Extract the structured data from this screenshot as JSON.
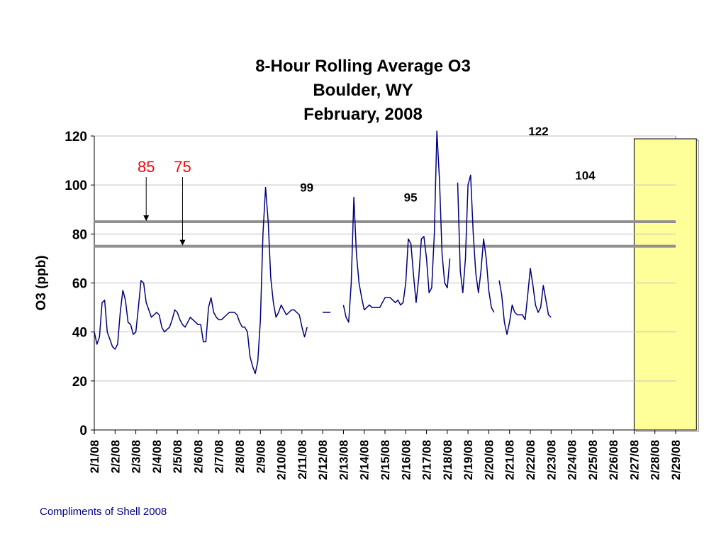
{
  "chart_data": {
    "type": "line",
    "title": [
      "8-Hour Rolling Average O3",
      "Boulder, WY",
      "February, 2008"
    ],
    "ylabel": "O3 (ppb)",
    "xlabel": "",
    "ylim": [
      0,
      120
    ],
    "yticks": [
      0,
      20,
      40,
      60,
      80,
      100,
      120
    ],
    "xlim": [
      "2/1/08",
      "2/29/08"
    ],
    "x_tick_labels": [
      "2/1/08",
      "2/2/08",
      "2/3/08",
      "2/4/08",
      "2/5/08",
      "2/6/08",
      "2/7/08",
      "2/8/08",
      "2/9/08",
      "2/10/08",
      "2/11/08",
      "2/12/08",
      "2/13/08",
      "2/14/08",
      "2/15/08",
      "2/16/08",
      "2/17/08",
      "2/18/08",
      "2/19/08",
      "2/20/08",
      "2/21/08",
      "2/22/08",
      "2/23/08",
      "2/24/08",
      "2/25/08",
      "2/26/08",
      "2/27/08",
      "2/28/08",
      "2/29/08"
    ],
    "grid": {
      "horizontal": true,
      "vertical": false
    },
    "line_color": "#000080",
    "reference_lines": [
      {
        "value": 85,
        "label": "85",
        "label_color": "#ff0000",
        "arrow_at": "2/3/08 12:00"
      },
      {
        "value": 75,
        "label": "75",
        "label_color": "#ff0000",
        "arrow_at": "2/5/08 06:00"
      }
    ],
    "highlight_range": {
      "from": "2/27/08",
      "to": "2/29/08 24:00",
      "color": "#ffff99"
    },
    "annotations": [
      {
        "text": "99",
        "x": "2/10/08 12:00",
        "y": 99
      },
      {
        "text": "95",
        "x": "2/15/08 12:00",
        "y": 95
      },
      {
        "text": "122",
        "x": "2/21/08 12:00",
        "y": 122
      },
      {
        "text": "104",
        "x": "2/23/08 18:00",
        "y": 104
      }
    ],
    "series": [
      {
        "segments": [
          [
            [
              "2/1/08 00:00",
              40
            ],
            [
              "2/1/08 03:00",
              35
            ],
            [
              "2/1/08 06:00",
              38
            ],
            [
              "2/1/08 09:00",
              52
            ],
            [
              "2/1/08 12:00",
              53
            ],
            [
              "2/1/08 15:00",
              40
            ],
            [
              "2/1/08 18:00",
              37
            ],
            [
              "2/1/08 21:00",
              34
            ],
            [
              "2/2/08 00:00",
              33
            ],
            [
              "2/2/08 03:00",
              35
            ],
            [
              "2/2/08 06:00",
              48
            ],
            [
              "2/2/08 09:00",
              57
            ],
            [
              "2/2/08 12:00",
              53
            ],
            [
              "2/2/08 15:00",
              44
            ],
            [
              "2/2/08 18:00",
              43
            ],
            [
              "2/2/08 21:00",
              39
            ],
            [
              "2/3/08 00:00",
              40
            ],
            [
              "2/3/08 03:00",
              50
            ],
            [
              "2/3/08 06:00",
              61
            ],
            [
              "2/3/08 09:00",
              60
            ],
            [
              "2/3/08 12:00",
              52
            ],
            [
              "2/3/08 15:00",
              49
            ],
            [
              "2/3/08 18:00",
              46
            ],
            [
              "2/3/08 21:00",
              47
            ],
            [
              "2/4/08 00:00",
              48
            ],
            [
              "2/4/08 03:00",
              47
            ],
            [
              "2/4/08 06:00",
              42
            ],
            [
              "2/4/08 09:00",
              40
            ],
            [
              "2/4/08 12:00",
              41
            ],
            [
              "2/4/08 15:00",
              42
            ],
            [
              "2/4/08 18:00",
              45
            ],
            [
              "2/4/08 21:00",
              49
            ],
            [
              "2/5/08 00:00",
              48
            ],
            [
              "2/5/08 03:00",
              45
            ],
            [
              "2/5/08 06:00",
              43
            ],
            [
              "2/5/08 09:00",
              42
            ],
            [
              "2/5/08 12:00",
              44
            ],
            [
              "2/5/08 15:00",
              46
            ],
            [
              "2/5/08 18:00",
              45
            ],
            [
              "2/5/08 21:00",
              44
            ],
            [
              "2/6/08 00:00",
              43
            ],
            [
              "2/6/08 03:00",
              43
            ],
            [
              "2/6/08 06:00",
              36
            ],
            [
              "2/6/08 09:00",
              36
            ],
            [
              "2/6/08 12:00",
              50
            ],
            [
              "2/6/08 15:00",
              54
            ],
            [
              "2/6/08 18:00",
              48
            ],
            [
              "2/6/08 21:00",
              46
            ],
            [
              "2/7/08 00:00",
              45
            ],
            [
              "2/7/08 03:00",
              45
            ],
            [
              "2/7/08 06:00",
              46
            ],
            [
              "2/7/08 09:00",
              47
            ],
            [
              "2/7/08 12:00",
              48
            ],
            [
              "2/7/08 15:00",
              48
            ],
            [
              "2/7/08 18:00",
              48
            ],
            [
              "2/7/08 21:00",
              47
            ],
            [
              "2/8/08 00:00",
              44
            ],
            [
              "2/8/08 03:00",
              42
            ],
            [
              "2/8/08 06:00",
              42
            ],
            [
              "2/8/08 09:00",
              40
            ],
            [
              "2/8/08 12:00",
              30
            ],
            [
              "2/8/08 15:00",
              26
            ],
            [
              "2/8/08 18:00",
              23
            ],
            [
              "2/8/08 21:00",
              28
            ],
            [
              "2/9/08 00:00",
              45
            ],
            [
              "2/9/08 03:00",
              80
            ],
            [
              "2/9/08 06:00",
              99
            ],
            [
              "2/9/08 09:00",
              85
            ],
            [
              "2/9/08 12:00",
              62
            ],
            [
              "2/9/08 15:00",
              52
            ],
            [
              "2/9/08 18:00",
              46
            ],
            [
              "2/9/08 21:00",
              48
            ],
            [
              "2/10/08 00:00",
              51
            ],
            [
              "2/10/08 03:00",
              49
            ],
            [
              "2/10/08 06:00",
              47
            ],
            [
              "2/10/08 09:00",
              48
            ],
            [
              "2/10/08 12:00",
              49
            ],
            [
              "2/10/08 15:00",
              49
            ],
            [
              "2/10/08 18:00",
              48
            ],
            [
              "2/10/08 21:00",
              47
            ],
            [
              "2/11/08 00:00",
              42
            ],
            [
              "2/11/08 03:00",
              38
            ],
            [
              "2/11/08 06:00",
              42
            ]
          ],
          [
            [
              "2/12/08 00:00",
              48
            ],
            [
              "2/12/08 09:00",
              48
            ]
          ],
          [
            [
              "2/13/08 00:00",
              51
            ],
            [
              "2/13/08 03:00",
              46
            ],
            [
              "2/13/08 06:00",
              44
            ],
            [
              "2/13/08 09:00",
              60
            ],
            [
              "2/13/08 12:00",
              95
            ],
            [
              "2/13/08 15:00",
              72
            ],
            [
              "2/13/08 18:00",
              60
            ],
            [
              "2/13/08 21:00",
              54
            ],
            [
              "2/14/08 00:00",
              49
            ],
            [
              "2/14/08 03:00",
              50
            ],
            [
              "2/14/08 06:00",
              51
            ],
            [
              "2/14/08 09:00",
              50
            ],
            [
              "2/14/08 12:00",
              50
            ],
            [
              "2/14/08 15:00",
              50
            ],
            [
              "2/14/08 18:00",
              50
            ],
            [
              "2/14/08 21:00",
              52
            ],
            [
              "2/15/08 00:00",
              54
            ],
            [
              "2/15/08 03:00",
              54
            ],
            [
              "2/15/08 06:00",
              54
            ],
            [
              "2/15/08 09:00",
              53
            ],
            [
              "2/15/08 12:00",
              52
            ],
            [
              "2/15/08 15:00",
              53
            ],
            [
              "2/15/08 18:00",
              51
            ],
            [
              "2/15/08 21:00",
              52
            ],
            [
              "2/16/08 00:00",
              60
            ],
            [
              "2/16/08 03:00",
              78
            ],
            [
              "2/16/08 06:00",
              76
            ],
            [
              "2/16/08 09:00",
              63
            ],
            [
              "2/16/08 12:00",
              52
            ],
            [
              "2/16/08 15:00",
              62
            ],
            [
              "2/16/08 18:00",
              78
            ],
            [
              "2/16/08 21:00",
              79
            ],
            [
              "2/17/08 00:00",
              70
            ],
            [
              "2/17/08 03:00",
              56
            ],
            [
              "2/17/08 06:00",
              58
            ],
            [
              "2/17/08 09:00",
              80
            ],
            [
              "2/17/08 12:00",
              122
            ],
            [
              "2/17/08 15:00",
              102
            ],
            [
              "2/17/08 18:00",
              72
            ],
            [
              "2/17/08 21:00",
              60
            ],
            [
              "2/18/08 00:00",
              58
            ],
            [
              "2/18/08 03:00",
              70
            ]
          ],
          [
            [
              "2/18/08 12:00",
              101
            ],
            [
              "2/18/08 15:00",
              65
            ],
            [
              "2/18/08 18:00",
              56
            ],
            [
              "2/18/08 21:00",
              70
            ],
            [
              "2/19/08 00:00",
              100
            ],
            [
              "2/19/08 03:00",
              104
            ],
            [
              "2/19/08 06:00",
              80
            ],
            [
              "2/19/08 09:00",
              64
            ],
            [
              "2/19/08 12:00",
              56
            ],
            [
              "2/19/08 15:00",
              65
            ],
            [
              "2/19/08 18:00",
              78
            ],
            [
              "2/19/08 21:00",
              70
            ],
            [
              "2/20/08 00:00",
              57
            ],
            [
              "2/20/08 03:00",
              50
            ],
            [
              "2/20/08 06:00",
              48
            ]
          ],
          [
            [
              "2/20/08 12:00",
              61
            ],
            [
              "2/20/08 15:00",
              55
            ],
            [
              "2/20/08 18:00",
              44
            ],
            [
              "2/20/08 21:00",
              39
            ],
            [
              "2/21/08 00:00",
              44
            ],
            [
              "2/21/08 03:00",
              51
            ],
            [
              "2/21/08 06:00",
              48
            ],
            [
              "2/21/08 09:00",
              47
            ],
            [
              "2/21/08 12:00",
              47
            ],
            [
              "2/21/08 15:00",
              47
            ],
            [
              "2/21/08 18:00",
              45
            ],
            [
              "2/21/08 21:00",
              55
            ],
            [
              "2/22/08 00:00",
              66
            ],
            [
              "2/22/08 03:00",
              59
            ],
            [
              "2/22/08 06:00",
              51
            ],
            [
              "2/22/08 09:00",
              48
            ],
            [
              "2/22/08 12:00",
              50
            ],
            [
              "2/22/08 15:00",
              59
            ],
            [
              "2/22/08 18:00",
              53
            ],
            [
              "2/22/08 21:00",
              47
            ],
            [
              "2/23/08 00:00",
              46
            ]
          ]
        ]
      }
    ]
  },
  "footer": {
    "credit": "Compliments of Shell 2008"
  }
}
